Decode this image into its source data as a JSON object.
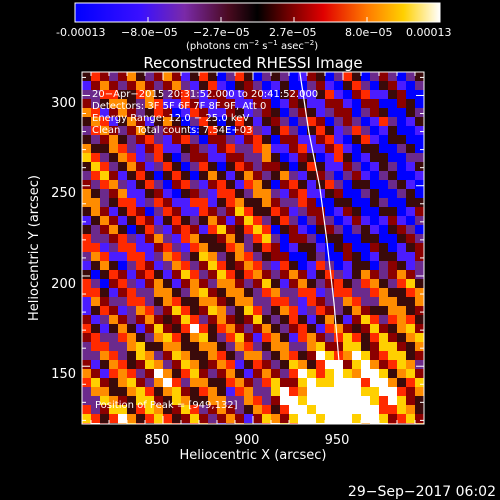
{
  "colorbar": {
    "tick_labels": [
      "-0.00013",
      "−8.0e−05",
      "−2.7e−05",
      "2.7e−05",
      "8.0e−05",
      "0.00013"
    ],
    "unit_base": "(photons cm",
    "unit_sup1": "−2",
    "unit_mid": " s",
    "unit_sup2": "−1",
    "unit_mid2": " asec",
    "unit_sup3": "−2",
    "unit_end": ")",
    "range": [
      -0.00013,
      0.00013
    ]
  },
  "chart_data": {
    "type": "heatmap",
    "title": "Reconstructed RHESSI Image",
    "xlabel": "Heliocentric X (arcsec)",
    "ylabel": "Heliocentric Y (arcsec)",
    "xlim": [
      805,
      995
    ],
    "ylim": [
      118,
      313
    ],
    "x_ticks": [
      850,
      900,
      950
    ],
    "y_ticks": [
      150,
      200,
      250,
      300
    ],
    "colormap": [
      "#0000ff",
      "#4b1cff",
      "#6b2a8c",
      "#3a0a0a",
      "#8b0000",
      "#ff2a00",
      "#ff8c00",
      "#ffd000",
      "#ffffff"
    ],
    "annotations": [
      "20−Apr−2015 20:31:52.000 to 20:41:52.000",
      "Detectors: 3F 5F 6F 7F 8F 9F, Att 0",
      "Energy Range: 12.0 − 25.0 keV",
      "Clean     Total counts: 7.54E+03"
    ],
    "peak_label": "Position of Peak = [949,132]",
    "peak": [
      949,
      132
    ],
    "limb_points": [
      [
        926,
        313
      ],
      [
        931,
        280
      ],
      [
        937,
        250
      ],
      [
        941,
        220
      ],
      [
        945,
        185
      ],
      [
        948,
        150
      ],
      [
        950,
        118
      ]
    ]
  },
  "footer": {
    "timestamp": "29−Sep−2017 06:02"
  }
}
